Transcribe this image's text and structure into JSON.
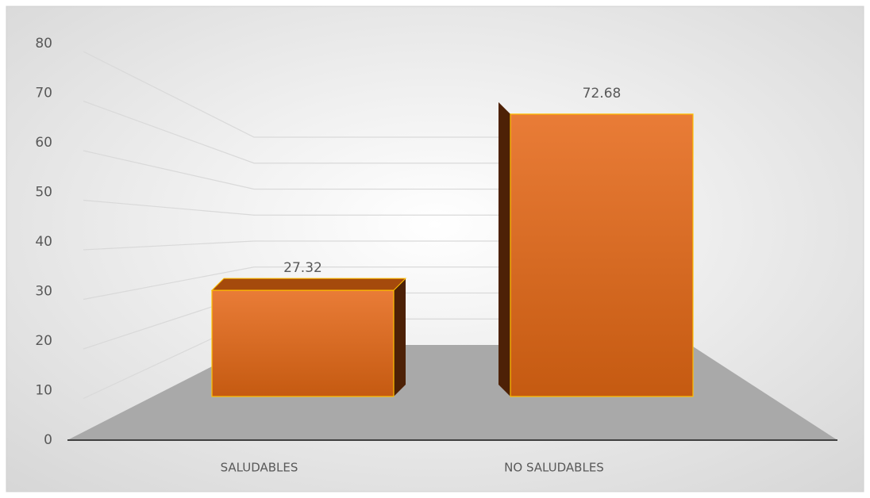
{
  "chart_data": {
    "type": "bar3d",
    "categories": [
      "SALUDABLES",
      "NO SALUDABLES"
    ],
    "values": [
      27.32,
      72.68
    ],
    "color": "#c55a11",
    "ylim": [
      0,
      80
    ],
    "yticks": [
      0,
      10,
      20,
      30,
      40,
      50,
      60,
      70,
      80
    ],
    "grid": true
  }
}
